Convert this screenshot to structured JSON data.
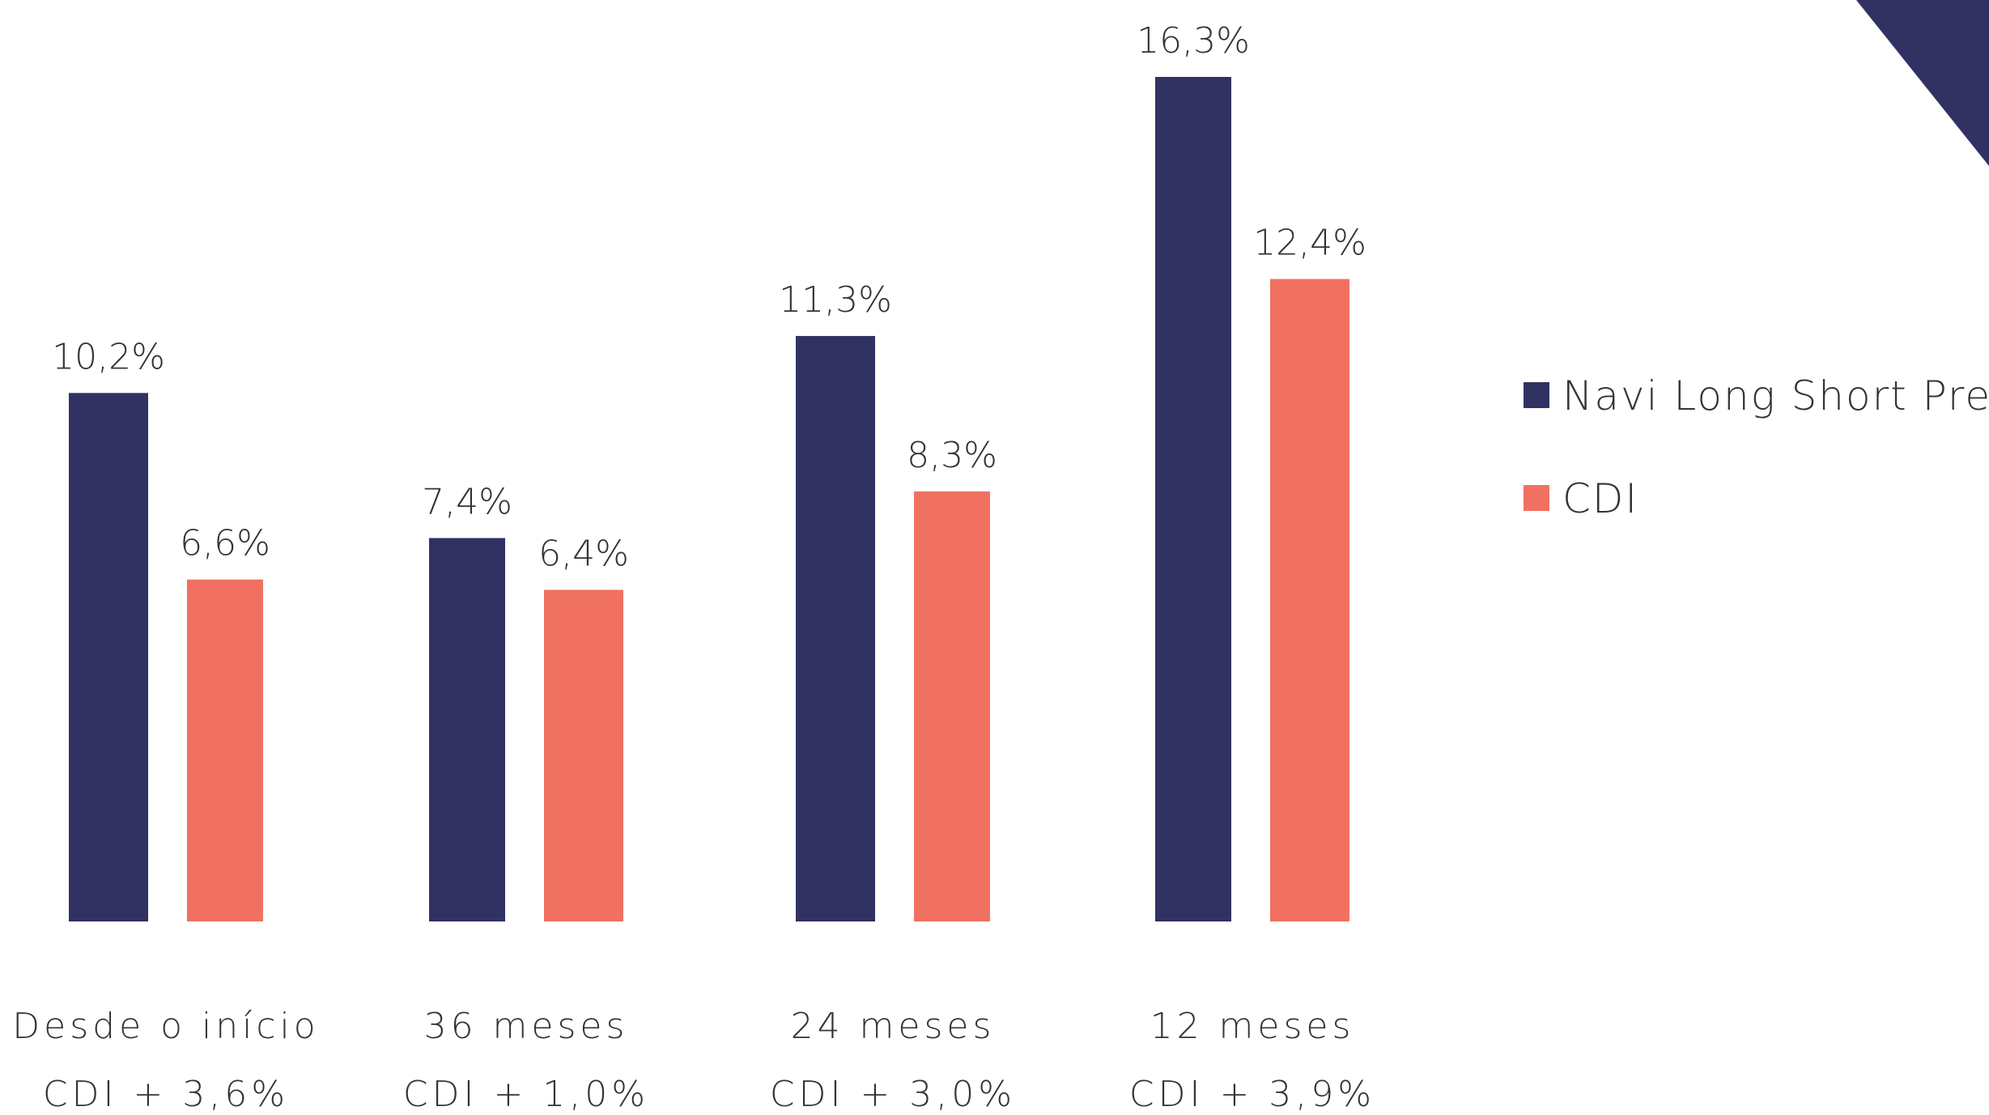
{
  "chart_data": {
    "type": "bar",
    "categories": [
      "Desde o início",
      "36 meses",
      "24 meses",
      "12 meses"
    ],
    "subcategories": [
      "CDI + 3,6%",
      "CDI + 1,0%",
      "CDI + 3,0%",
      "CDI + 3,9%"
    ],
    "series": [
      {
        "name": "Navi Long Short Prev",
        "values": [
          10.2,
          7.4,
          11.3,
          16.3
        ],
        "labels": [
          "10,2%",
          "7,4%",
          "11,3%",
          "16,3%"
        ],
        "color": "#313262"
      },
      {
        "name": "CDI",
        "values": [
          6.6,
          6.4,
          8.3,
          12.4
        ],
        "labels": [
          "6,6%",
          "6,4%",
          "8,3%",
          "12,4%"
        ],
        "color": "#F07161"
      }
    ],
    "ylim": [
      0,
      16.3
    ],
    "grid": false,
    "legend_position": "right"
  },
  "decoration": {
    "corner_color": "#313262"
  }
}
